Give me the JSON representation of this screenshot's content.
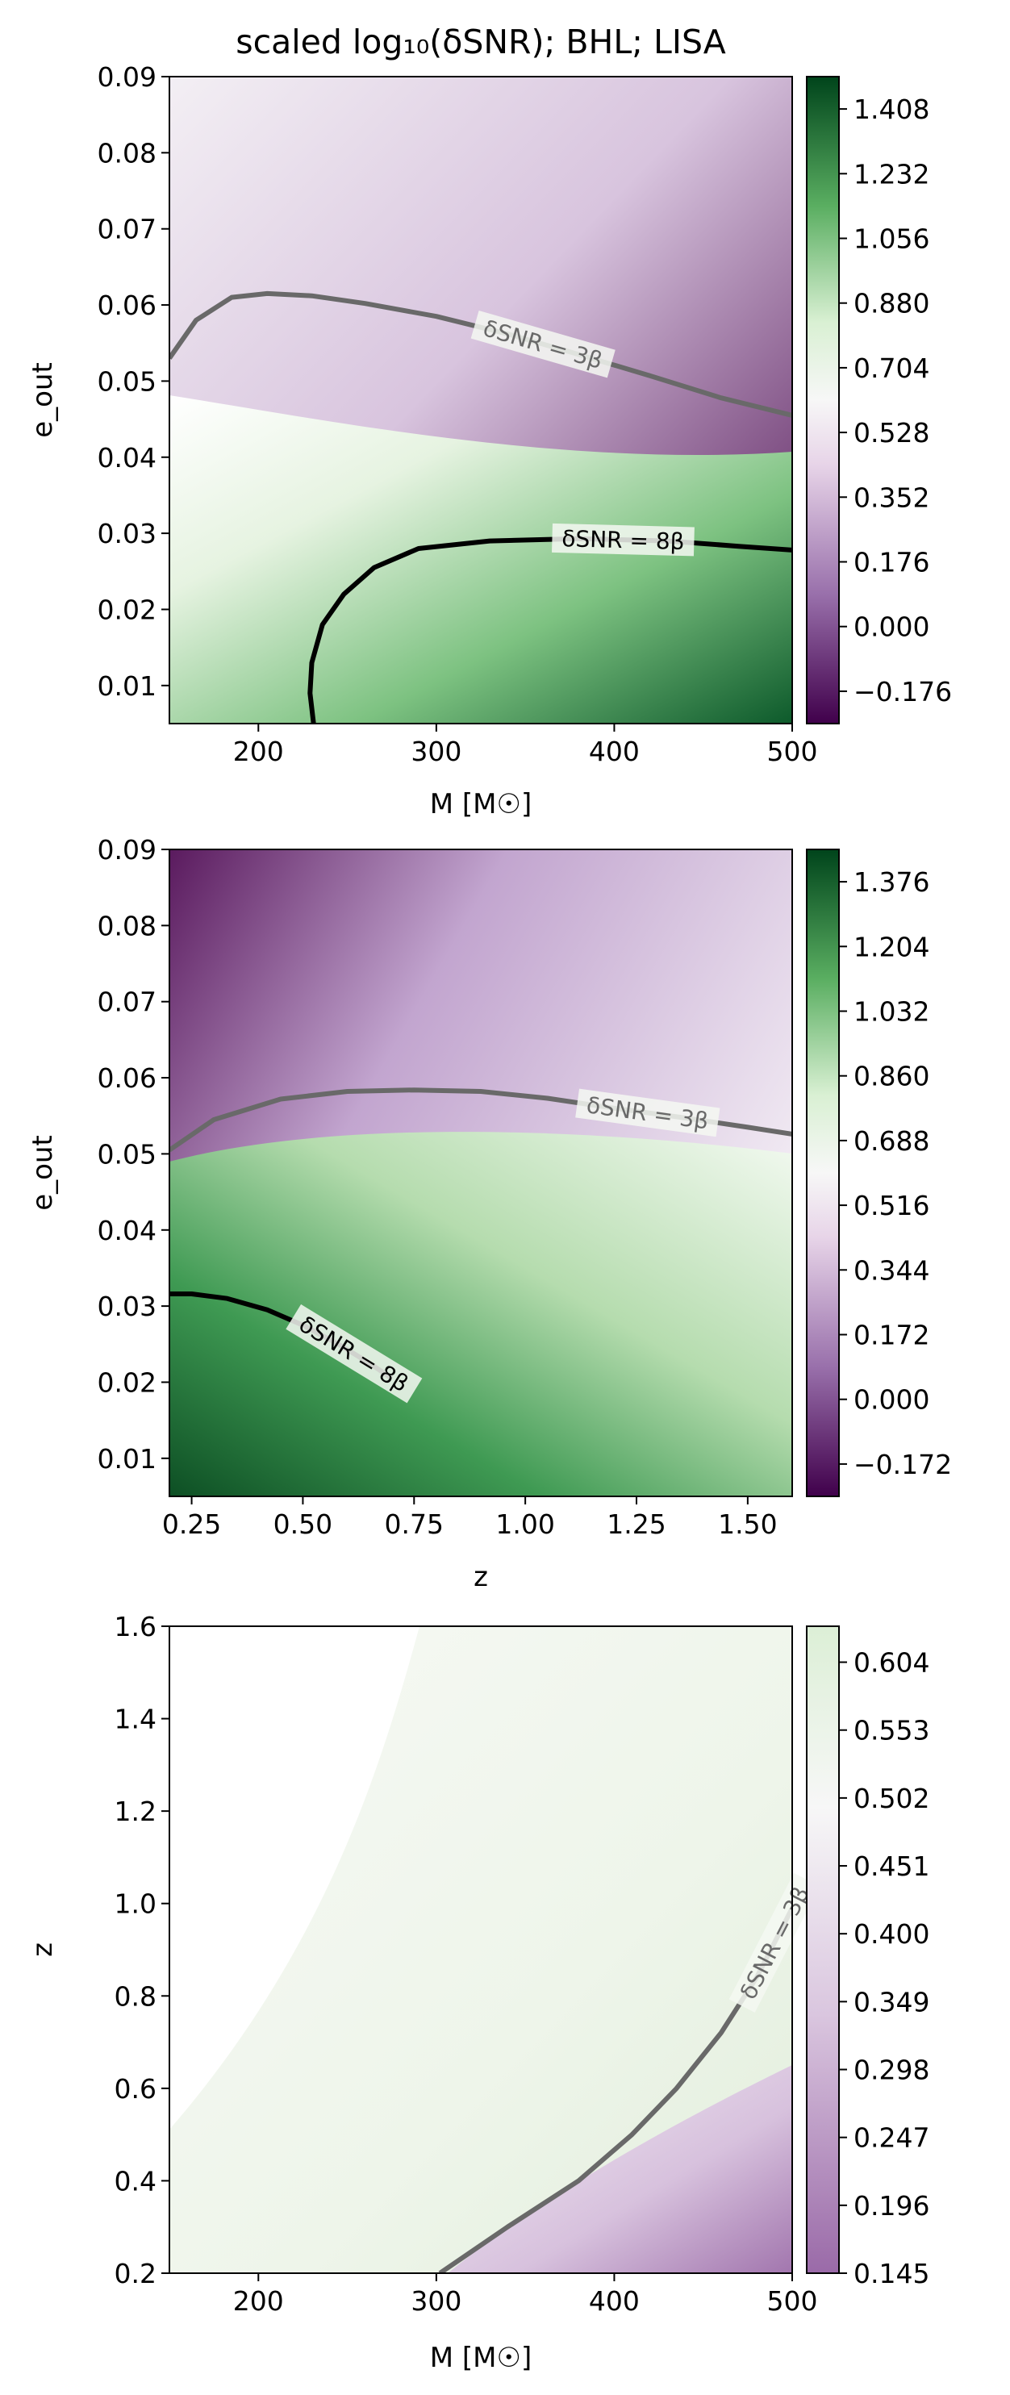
{
  "figure_title": "scaled log₁₀(δSNR); BHL; LISA",
  "chart_data": [
    {
      "type": "heatmap",
      "title": "scaled log₁₀(δSNR); BHL; LISA",
      "xlabel": "M [M☉]",
      "ylabel": "e_out",
      "xlim": [
        150,
        500
      ],
      "ylim": [
        0.005,
        0.09
      ],
      "x_ticks": [
        200,
        300,
        400,
        500
      ],
      "y_ticks": [
        0.01,
        0.02,
        0.03,
        0.04,
        0.05,
        0.06,
        0.07,
        0.08,
        0.09
      ],
      "colormap": "PRGn",
      "colorbar": {
        "min": -0.264,
        "max": 1.496,
        "ticks": [
          -0.176,
          0.0,
          0.176,
          0.352,
          0.528,
          0.704,
          0.88,
          1.056,
          1.232,
          1.408
        ]
      },
      "contours": [
        {
          "label": "δSNR = 3β",
          "color": "#696969",
          "points": [
            [
              150,
              0.053
            ],
            [
              165,
              0.058
            ],
            [
              185,
              0.061
            ],
            [
              205,
              0.0615
            ],
            [
              230,
              0.0612
            ],
            [
              260,
              0.0602
            ],
            [
              300,
              0.0585
            ],
            [
              340,
              0.0562
            ],
            [
              380,
              0.0535
            ],
            [
              420,
              0.0507
            ],
            [
              460,
              0.0478
            ],
            [
              500,
              0.0455
            ]
          ]
        },
        {
          "label": "δSNR = 8β",
          "color": "#000000",
          "points": [
            [
              231,
              0.005
            ],
            [
              229,
              0.009
            ],
            [
              230,
              0.013
            ],
            [
              236,
              0.018
            ],
            [
              248,
              0.022
            ],
            [
              265,
              0.0255
            ],
            [
              290,
              0.028
            ],
            [
              330,
              0.029
            ],
            [
              380,
              0.0293
            ],
            [
              430,
              0.029
            ],
            [
              470,
              0.0283
            ],
            [
              500,
              0.0278
            ]
          ]
        }
      ]
    },
    {
      "type": "heatmap",
      "xlabel": "z",
      "ylabel": "e_out",
      "xlim": [
        0.2,
        1.6
      ],
      "ylim": [
        0.005,
        0.09
      ],
      "x_ticks": [
        "0.25",
        "0.50",
        "0.75",
        "1.00",
        "1.25",
        "1.50"
      ],
      "y_ticks": [
        0.01,
        0.02,
        0.03,
        0.04,
        0.05,
        0.06,
        0.07,
        0.08,
        0.09
      ],
      "colormap": "PRGn",
      "colorbar": {
        "min": -0.258,
        "max": 1.462,
        "ticks": [
          -0.172,
          0.0,
          0.172,
          0.344,
          0.516,
          0.688,
          0.86,
          1.032,
          1.204,
          1.376
        ]
      },
      "contours": [
        {
          "label": "δSNR = 3β",
          "color": "#696969",
          "points": [
            [
              0.2,
              0.0505
            ],
            [
              0.3,
              0.0545
            ],
            [
              0.45,
              0.0572
            ],
            [
              0.6,
              0.0582
            ],
            [
              0.75,
              0.0584
            ],
            [
              0.9,
              0.0582
            ],
            [
              1.05,
              0.0573
            ],
            [
              1.2,
              0.056
            ],
            [
              1.35,
              0.0548
            ],
            [
              1.5,
              0.0535
            ],
            [
              1.6,
              0.0526
            ]
          ]
        },
        {
          "label": "δSNR = 8β",
          "color": "#000000",
          "points": [
            [
              0.2,
              0.0316
            ],
            [
              0.25,
              0.0316
            ],
            [
              0.33,
              0.031
            ],
            [
              0.42,
              0.0295
            ],
            [
              0.5,
              0.0275
            ],
            [
              0.58,
              0.025
            ],
            [
              0.65,
              0.0225
            ],
            [
              0.7,
              0.0205
            ]
          ]
        }
      ]
    },
    {
      "type": "heatmap",
      "xlabel": "M [M☉]",
      "ylabel": "z",
      "xlim": [
        150,
        500
      ],
      "ylim": [
        0.2,
        1.6
      ],
      "x_ticks": [
        200,
        300,
        400,
        500
      ],
      "y_ticks": [
        "0.2",
        "0.4",
        "0.6",
        "0.8",
        "1.0",
        "1.2",
        "1.4",
        "1.6"
      ],
      "colormap": "PRGn",
      "colorbar": {
        "min": 0.145,
        "max": 0.631,
        "ticks": [
          0.145,
          0.196,
          0.247,
          0.298,
          0.349,
          0.4,
          0.451,
          0.502,
          0.553,
          0.604
        ]
      },
      "contours": [
        {
          "label": "δSNR = 3β",
          "color": "#696969",
          "points": [
            [
              302,
              0.2
            ],
            [
              340,
              0.3
            ],
            [
              380,
              0.4
            ],
            [
              410,
              0.5
            ],
            [
              435,
              0.6
            ],
            [
              460,
              0.72
            ],
            [
              480,
              0.84
            ],
            [
              500,
              0.99
            ]
          ]
        }
      ]
    }
  ]
}
